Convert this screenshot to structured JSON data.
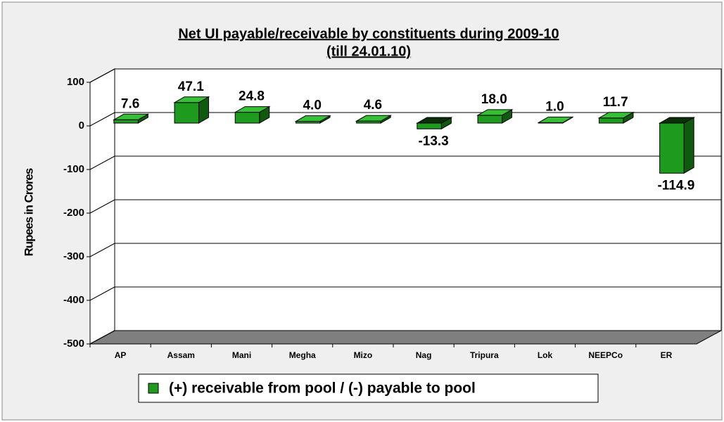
{
  "chart_data": {
    "type": "bar",
    "title": "Net UI payable/receivable by constituents during 2009-10",
    "subtitle": "(till 24.01.10)",
    "y_label": "Rupees in Crores",
    "categories": [
      "AP",
      "Assam",
      "Mani",
      "Megha",
      "Mizo",
      "Nag",
      "Tripura",
      "Lok",
      "NEEPCo",
      "ER"
    ],
    "series": [
      {
        "name": "(+) receivable from pool / (-) payable to pool",
        "color": "#1e9b1e",
        "values": [
          7.6,
          47.1,
          24.8,
          4.0,
          4.6,
          -13.3,
          18.0,
          1.0,
          11.7,
          -114.9
        ],
        "value_labels": [
          "7.6",
          "47.1",
          "24.8",
          "4.0",
          "4.6",
          "-13.3",
          "18.0",
          "1.0",
          "11.7",
          "-114.9"
        ]
      }
    ],
    "ylim": [
      -500,
      100
    ],
    "yticks": [
      100,
      0,
      -100,
      -200,
      -300,
      -400,
      -500
    ],
    "grid": true,
    "legend": "bottom"
  }
}
